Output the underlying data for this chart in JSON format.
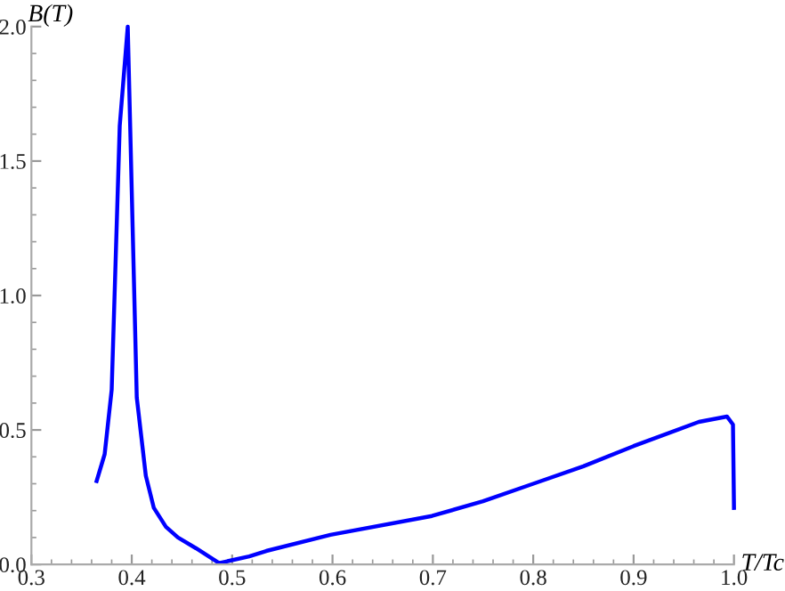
{
  "chart_data": {
    "type": "line",
    "xlabel": "T/Tc",
    "ylabel": "B(T)",
    "x": [
      0.365,
      0.373,
      0.38,
      0.388,
      0.396,
      0.405,
      0.414,
      0.422,
      0.434,
      0.446,
      0.464,
      0.487,
      0.517,
      0.534,
      0.598,
      0.699,
      0.75,
      0.8,
      0.85,
      0.9,
      0.965,
      0.993,
      0.999,
      1.0
    ],
    "series": [
      {
        "color": "#0000ff",
        "values": [
          0.31,
          0.41,
          0.65,
          1.63,
          2.0,
          0.62,
          0.33,
          0.21,
          0.14,
          0.1,
          0.06,
          0.005,
          0.03,
          0.05,
          0.11,
          0.18,
          0.235,
          0.3,
          0.365,
          0.44,
          0.53,
          0.55,
          0.52,
          0.21
        ]
      }
    ],
    "xlim": [
      0.3,
      1.0
    ],
    "ylim": [
      0.0,
      2.0
    ],
    "xticks": [
      0.3,
      0.4,
      0.5,
      0.6,
      0.7,
      0.8,
      0.9,
      {
        "value": 1,
        "label": "1.0"
      }
    ],
    "yticks": [
      {
        "value": 0,
        "label": "0.0"
      },
      0.5,
      {
        "value": 1,
        "label": "1.0"
      },
      1.5,
      {
        "value": 2,
        "label": "2.0"
      }
    ],
    "grid": false,
    "marker": "none",
    "line_style": "solid"
  }
}
